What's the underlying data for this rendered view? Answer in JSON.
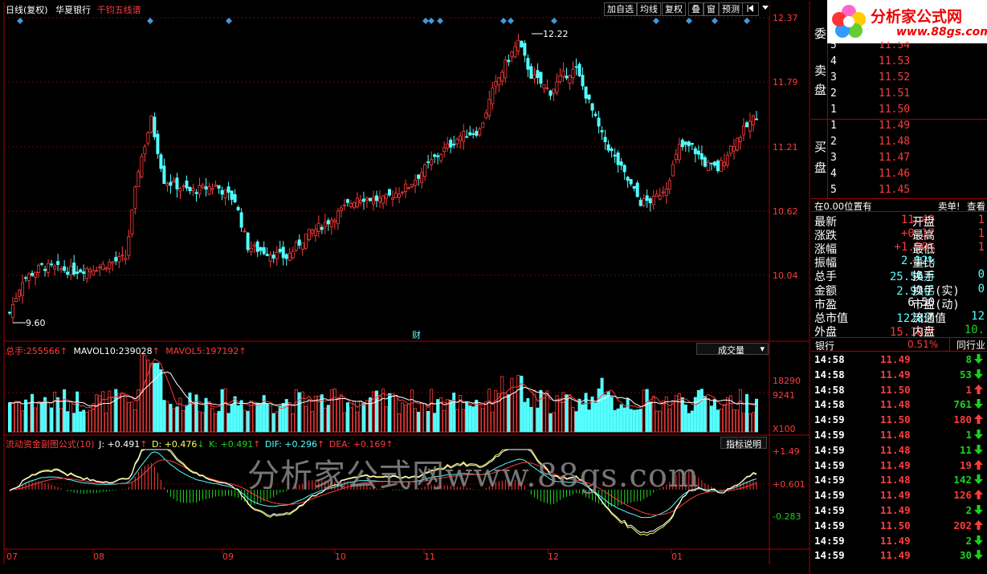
{
  "header": {
    "period": "日线(复权)",
    "stock_name": "华夏银行",
    "indicator": "千钧五线谱"
  },
  "toolbar": {
    "add_fav": "加自选",
    "ma_line": "均线",
    "restore": "复权",
    "overlay": "叠",
    "window": "窗",
    "forecast": "预测",
    "more_icon": "arrow-menu-icon"
  },
  "watermark": {
    "logo_text": "分析家公式网",
    "logo_url": "www.88gs.com",
    "center_text": "分析家公式网www.88gs.com"
  },
  "main_chart": {
    "price_axis": [
      "12.37",
      "11.79",
      "11.21",
      "10.62",
      "10.04"
    ],
    "high_annotation": "12.22",
    "low_annotation": "9.60",
    "finance_marker": "财",
    "up_color": "#ff3c3c",
    "down_color": "#54ffff"
  },
  "volume_panel": {
    "total_label": "总手:",
    "total_value": "255566",
    "mavol10_label": "MAVOL10:",
    "mavol10_value": "239028",
    "mavol5_label": "MAVOL5:",
    "mavol5_value": "197192",
    "selector": "成交量",
    "axis": [
      "18290",
      "9241",
      "X100"
    ]
  },
  "indicator_panel": {
    "name": "流动资金副图公式(10)",
    "j": "J: +0.491",
    "d": "D: +0.476",
    "k": "K: +0.491",
    "dif": "DIF: +0.296",
    "dea": "DEA: +0.169",
    "explain_button": "指标说明",
    "axis": [
      "+1.49",
      "+0.601",
      "-0.283"
    ]
  },
  "x_axis": [
    "07",
    "08",
    "09",
    "10",
    "11",
    "12",
    "01"
  ],
  "order_book": {
    "ask_title_chars": [
      "委",
      "卖",
      "盘"
    ],
    "bid_title_chars": [
      "买",
      "盘"
    ],
    "asks": [
      {
        "level": "5",
        "price": "11.54"
      },
      {
        "level": "4",
        "price": "11.53"
      },
      {
        "level": "3",
        "price": "11.52"
      },
      {
        "level": "2",
        "price": "11.51"
      },
      {
        "level": "1",
        "price": "11.50"
      }
    ],
    "bids": [
      {
        "level": "1",
        "price": "11.49"
      },
      {
        "level": "2",
        "price": "11.48"
      },
      {
        "level": "3",
        "price": "11.47"
      },
      {
        "level": "4",
        "price": "11.46"
      },
      {
        "level": "5",
        "price": "11.45"
      }
    ]
  },
  "info_bar": {
    "position": "在0.00位置有",
    "sell_order": "卖单!",
    "check": "查看"
  },
  "stats": {
    "rows": [
      {
        "l1": "最新",
        "v1": "11.49",
        "l2": "开盘",
        "v2": "1"
      },
      {
        "l1": "涨跌",
        "v1": "+0.17",
        "l2": "最高",
        "v2": "1"
      },
      {
        "l1": "涨幅",
        "v1": "+1.50%",
        "l2": "最低",
        "v2": "1"
      },
      {
        "l1": "振幅",
        "v1": "2.12%",
        "l2": "量比",
        "v2": ""
      },
      {
        "l1": "总手",
        "v1": "25.56万",
        "l2": "换手",
        "v2": "0"
      },
      {
        "l1": "金额",
        "v1": "2.93亿",
        "l2": "换手(实)",
        "v2": "0"
      },
      {
        "l1": "市盈",
        "v1": "6.50",
        "l2": "市盈(动)",
        "v2": ""
      },
      {
        "l1": "总市值",
        "v1": "1228亿",
        "l2": "流通值",
        "v2": "12"
      },
      {
        "l1": "外盘",
        "v1": "15.18万",
        "l2": "内盘",
        "v2": "10."
      }
    ]
  },
  "sector_bar": {
    "sector": "银行",
    "pct": "0.51%",
    "tab": "同行业"
  },
  "ticks": [
    {
      "time": "14:58",
      "price": "11.49",
      "vol": "8",
      "dir": "down"
    },
    {
      "time": "14:58",
      "price": "11.49",
      "vol": "53",
      "dir": "down"
    },
    {
      "time": "14:58",
      "price": "11.50",
      "vol": "1",
      "dir": "up"
    },
    {
      "time": "14:58",
      "price": "11.48",
      "vol": "761",
      "dir": "down"
    },
    {
      "time": "14:59",
      "price": "11.50",
      "vol": "180",
      "dir": "up"
    },
    {
      "time": "14:59",
      "price": "11.48",
      "vol": "1",
      "dir": "down"
    },
    {
      "time": "14:59",
      "price": "11.48",
      "vol": "11",
      "dir": "down"
    },
    {
      "time": "14:59",
      "price": "11.49",
      "vol": "19",
      "dir": "up"
    },
    {
      "time": "14:59",
      "price": "11.48",
      "vol": "142",
      "dir": "down"
    },
    {
      "time": "14:59",
      "price": "11.49",
      "vol": "126",
      "dir": "up"
    },
    {
      "time": "14:59",
      "price": "11.49",
      "vol": "2",
      "dir": "down"
    },
    {
      "time": "14:59",
      "price": "11.50",
      "vol": "202",
      "dir": "up"
    },
    {
      "time": "14:59",
      "price": "11.49",
      "vol": "2",
      "dir": "down"
    },
    {
      "time": "14:59",
      "price": "11.49",
      "vol": "30",
      "dir": "down"
    }
  ]
}
